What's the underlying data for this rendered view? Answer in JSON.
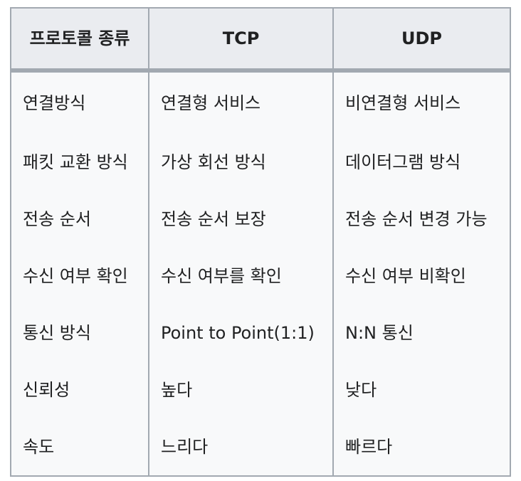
{
  "table": {
    "headers": [
      "프로토콜 종류",
      "TCP",
      "UDP"
    ],
    "rows": [
      [
        "연결방식",
        "연결형 서비스",
        "비연결형 서비스"
      ],
      [
        "패킷 교환 방식",
        "가상 회선 방식",
        "데이터그램 방식"
      ],
      [
        "전송 순서",
        "전송 순서 보장",
        "전송 순서 변경 가능"
      ],
      [
        "수신 여부 확인",
        "수신 여부를 확인",
        "수신 여부 비확인"
      ],
      [
        "통신 방식",
        "Point to Point(1:1)",
        "N:N 통신"
      ],
      [
        "신뢰성",
        "높다",
        "낮다"
      ],
      [
        "속도",
        "느리다",
        "빠르다"
      ]
    ]
  }
}
